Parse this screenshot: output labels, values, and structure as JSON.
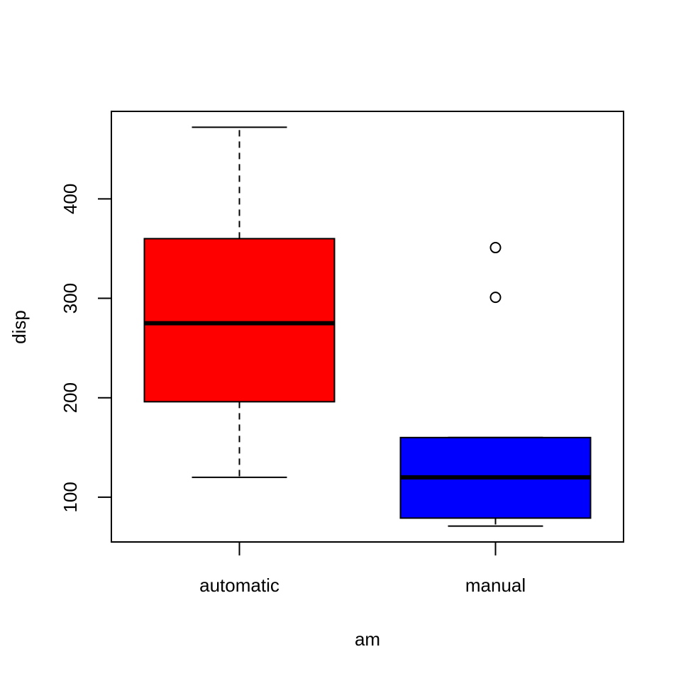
{
  "chart_data": {
    "type": "boxplot",
    "xlabel": "am",
    "ylabel": "disp",
    "ylim": [
      55,
      488
    ],
    "yticks": [
      100,
      200,
      300,
      400
    ],
    "categories": [
      "automatic",
      "manual"
    ],
    "boxes": [
      {
        "category": "automatic",
        "color": "#ff0000",
        "whisker_low": 120,
        "q1": 196,
        "median": 275,
        "q3": 360,
        "whisker_high": 472,
        "outliers": []
      },
      {
        "category": "manual",
        "color": "#0000ff",
        "whisker_low": 71,
        "q1": 79,
        "median": 120,
        "q3": 160,
        "whisker_high": 160,
        "outliers": [
          301,
          351
        ]
      }
    ],
    "grid": false,
    "legend": "none"
  }
}
